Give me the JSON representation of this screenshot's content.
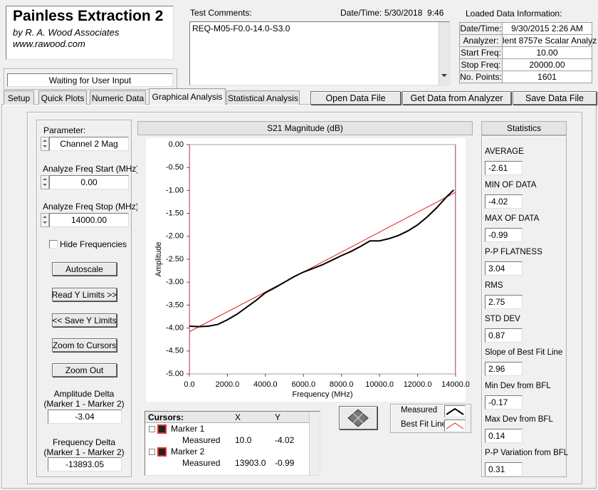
{
  "header": {
    "title": "Painless Extraction 2",
    "company": "by R. A. Wood Associates",
    "website": "www.rawood.com",
    "status": "Waiting for User Input"
  },
  "comments": {
    "label": "Test Comments:",
    "text": "REQ-M05-F0.0-14.0-S3.0",
    "datetime_label": "Date/Time:",
    "datetime": "5/30/2018  9:46"
  },
  "loaded_data": {
    "title": "Loaded Data Information:",
    "rows": [
      [
        "Date/Time:",
        "9/30/2015 2:26 AM"
      ],
      [
        "Analyzer:",
        "lent 8757e Scalar Analyz"
      ],
      [
        "Start Freq:",
        "10.00"
      ],
      [
        "Stop Freq:",
        "20000.00"
      ],
      [
        "No. Points:",
        "1601"
      ]
    ]
  },
  "tabs": [
    "Setup",
    "Quick Plots",
    "Numeric Data",
    "Graphical Analysis",
    "Statistical Analysis"
  ],
  "buttons": [
    "Open Data File",
    "Get Data from Analyzer",
    "Save Data File"
  ],
  "left_panel": {
    "parameter_label": "Parameter:",
    "parameter": "Channel 2 Mag",
    "start_label": "Analyze Freq Start (MHz)",
    "start": "0.00",
    "stop_label": "Analyze Freq Stop (MHz)",
    "stop": "14000.00",
    "hide_frequencies": "Hide Frequencies",
    "buttons": [
      "Autoscale",
      "Read Y Limits >>",
      "<< Save Y Limits",
      "Zoom to Cursors",
      "Zoom Out"
    ],
    "amplitude_delta_label": [
      "Amplitude Delta",
      "(Marker 1 - Marker 2)"
    ],
    "amplitude_delta": "-3.04",
    "frequency_delta_label": [
      "Frequency Delta",
      "(Marker 1 - Marker 2)"
    ],
    "frequency_delta": "-13893.05"
  },
  "chart_data": {
    "type": "line",
    "title": "S21 Magnitude (dB)",
    "x_label": "Frequency (MHz)",
    "y_label": "Amplitude",
    "xlim": [
      0,
      14000
    ],
    "ylim": [
      -5,
      0
    ],
    "xticks": [
      {
        "value": 0,
        "label": "0.0"
      },
      {
        "value": 2000,
        "label": "2000.0"
      },
      {
        "value": 4000,
        "label": "4000.0"
      },
      {
        "value": 6000,
        "label": "6000.0"
      },
      {
        "value": 8000,
        "label": "8000.0"
      },
      {
        "value": 10000,
        "label": "10000.0"
      },
      {
        "value": 12000,
        "label": "12000.0"
      },
      {
        "value": 14000,
        "label": "14000.0"
      }
    ],
    "yticks": [
      {
        "value": 0,
        "label": "0.00"
      },
      {
        "value": -0.5,
        "label": "-0.50"
      },
      {
        "value": -1,
        "label": "-1.00"
      },
      {
        "value": -1.5,
        "label": "-1.50"
      },
      {
        "value": -2,
        "label": "-2.00"
      },
      {
        "value": -2.5,
        "label": "-2.50"
      },
      {
        "value": -3,
        "label": "-3.00"
      },
      {
        "value": -3.5,
        "label": "-3.50"
      },
      {
        "value": -4,
        "label": "-4.00"
      },
      {
        "value": -4.5,
        "label": "-4.50"
      },
      {
        "value": -5,
        "label": "-5.00"
      }
    ],
    "grid": false,
    "series": [
      {
        "name": "Measured",
        "color": "#000000",
        "x": [
          0,
          500,
          1000,
          1500,
          2000,
          2500,
          3000,
          3500,
          4000,
          4500,
          5000,
          5500,
          6000,
          6500,
          7000,
          7500,
          8000,
          8500,
          9000,
          9500,
          10000,
          10500,
          11000,
          11500,
          12000,
          12500,
          13000,
          13500,
          13900
        ],
        "values": [
          -3.96,
          -3.97,
          -3.96,
          -3.92,
          -3.82,
          -3.7,
          -3.55,
          -3.4,
          -3.23,
          -3.12,
          -3.0,
          -2.88,
          -2.78,
          -2.7,
          -2.62,
          -2.52,
          -2.42,
          -2.33,
          -2.22,
          -2.1,
          -2.1,
          -2.05,
          -1.98,
          -1.88,
          -1.75,
          -1.58,
          -1.38,
          -1.15,
          -0.99
        ]
      },
      {
        "name": "Best Fit Line",
        "color": "#e02020",
        "x": [
          0,
          14000
        ],
        "values": [
          -4.08,
          -1.04
        ]
      }
    ]
  },
  "cursors": {
    "headers": [
      "Cursors:",
      "X",
      "Y"
    ],
    "markers": [
      {
        "name": "Marker 1",
        "plot": "Measured",
        "x": "10.0",
        "y": "-4.02"
      },
      {
        "name": "Marker 2",
        "plot": "Measured",
        "x": "13903.0",
        "y": "-0.99"
      }
    ]
  },
  "statistics": {
    "title": "Statistics",
    "items": [
      {
        "label": "AVERAGE",
        "value": "-2.61"
      },
      {
        "label": "MIN OF DATA",
        "value": "-4.02"
      },
      {
        "label": "MAX OF DATA",
        "value": "-0.99"
      },
      {
        "label": "P-P FLATNESS",
        "value": "3.04"
      },
      {
        "label": "RMS",
        "value": "2.75"
      },
      {
        "label": "STD DEV",
        "value": "0.87"
      },
      {
        "label": "Slope of Best Fit Line",
        "value": "2.96"
      },
      {
        "label": "Min Dev from BFL",
        "value": "-0.17"
      },
      {
        "label": "Max Dev from BFL",
        "value": "0.14"
      },
      {
        "label": "P-P Variation from BFL",
        "value": "0.31"
      }
    ]
  }
}
